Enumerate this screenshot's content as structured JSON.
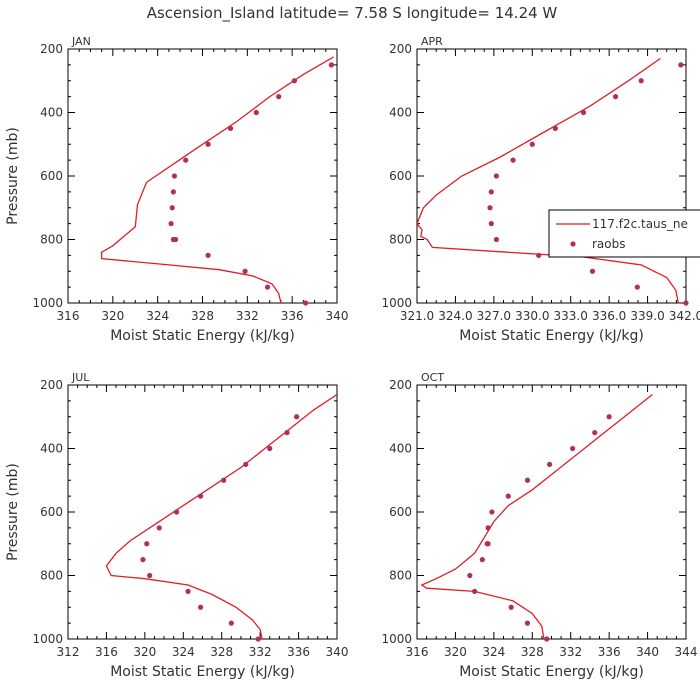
{
  "title": "Ascension_Island   latitude= 7.58 S longitude= 14.24 W",
  "colors": {
    "series": "#dd1f26",
    "points": "#b0305b",
    "axes": "#000000",
    "text": "#333333"
  },
  "legend": {
    "entries": [
      {
        "label": "117.f2c.taus_ne",
        "kind": "line"
      },
      {
        "label": "raobs",
        "kind": "marker"
      }
    ]
  },
  "chart_data": [
    {
      "type": "line",
      "panel": "JAN",
      "xlabel": "Moist Static Energy (kJ/kg)",
      "ylabel": "Pressure (mb)",
      "xlim": [
        316,
        340
      ],
      "ylim": [
        1000,
        200
      ],
      "xticks": [
        "316",
        "320",
        "324",
        "328",
        "332",
        "336",
        "340"
      ],
      "yticks": [
        "200",
        "400",
        "600",
        "800",
        "1000"
      ],
      "series": [
        {
          "style": "line",
          "x": [
            339.7,
            337.0,
            334.0,
            331.0,
            328.0,
            325.5,
            323.0,
            322.2,
            322.0,
            321.0,
            320.0,
            319.0,
            319.0,
            325.0,
            329.5,
            332.5,
            334.2,
            334.8,
            335.0
          ],
          "y": [
            225,
            280,
            350,
            430,
            500,
            560,
            620,
            690,
            760,
            790,
            820,
            840,
            860,
            880,
            895,
            915,
            940,
            970,
            1000
          ]
        },
        {
          "name": "raobs",
          "style": "markers",
          "x": [
            339.5,
            336.2,
            334.8,
            332.8,
            330.5,
            328.5,
            326.5,
            325.5,
            325.4,
            325.3,
            325.2,
            325.4,
            325.6,
            328.5,
            331.8,
            333.8,
            337.2
          ],
          "y": [
            250,
            300,
            350,
            400,
            450,
            500,
            550,
            600,
            650,
            700,
            750,
            800,
            800,
            850,
            900,
            950,
            1000
          ]
        }
      ]
    },
    {
      "type": "line",
      "panel": "APR",
      "xlabel": "Moist Static Energy (kJ/kg)",
      "xlim": [
        321.0,
        342.0
      ],
      "ylim": [
        1000,
        200
      ],
      "xticks": [
        "321.0",
        "324.0",
        "327.0",
        "330.0",
        "333.0",
        "336.0",
        "339.0",
        "342.0"
      ],
      "yticks": [
        "200",
        "400",
        "600",
        "800",
        "1000"
      ],
      "series": [
        {
          "style": "line",
          "x": [
            340.0,
            337.5,
            334.5,
            331.0,
            327.5,
            324.5,
            322.5,
            321.5,
            321.0,
            321.4,
            321.3,
            321.8,
            322.2,
            328.0,
            334.0,
            338.5,
            340.5,
            341.2,
            341.4
          ],
          "y": [
            230,
            300,
            380,
            460,
            540,
            600,
            660,
            700,
            750,
            770,
            790,
            800,
            825,
            840,
            855,
            880,
            920,
            960,
            1000
          ]
        },
        {
          "name": "raobs",
          "style": "markers",
          "x": [
            341.6,
            338.5,
            336.5,
            334.0,
            331.8,
            330.0,
            328.5,
            327.2,
            326.8,
            326.7,
            326.8,
            327.2,
            330.5,
            334.7,
            338.2,
            342.0
          ],
          "y": [
            250,
            300,
            350,
            400,
            450,
            500,
            550,
            600,
            650,
            700,
            750,
            800,
            850,
            900,
            950,
            1000
          ]
        }
      ]
    },
    {
      "type": "line",
      "panel": "JUL",
      "xlabel": "Moist Static Energy (kJ/kg)",
      "ylabel": "Pressure (mb)",
      "xlim": [
        312,
        340
      ],
      "ylim": [
        1000,
        200
      ],
      "xticks": [
        "312",
        "316",
        "320",
        "324",
        "328",
        "332",
        "336",
        "340"
      ],
      "yticks": [
        "200",
        "400",
        "600",
        "800",
        "1000"
      ],
      "series": [
        {
          "style": "line",
          "x": [
            340.0,
            337.5,
            335.0,
            332.5,
            330.0,
            327.0,
            324.0,
            321.0,
            318.5,
            317.0,
            316.0,
            316.5,
            320.0,
            324.5,
            327.0,
            329.5,
            331.2,
            332.0,
            332.2
          ],
          "y": [
            230,
            280,
            340,
            400,
            460,
            520,
            580,
            640,
            690,
            730,
            770,
            800,
            810,
            830,
            860,
            900,
            940,
            970,
            1000
          ]
        },
        {
          "name": "raobs",
          "style": "markers",
          "x": [
            335.8,
            334.8,
            333.0,
            330.5,
            328.2,
            325.8,
            323.3,
            321.5,
            320.2,
            319.8,
            320.5,
            324.5,
            325.8,
            329.0,
            331.8
          ],
          "y": [
            300,
            350,
            400,
            450,
            500,
            550,
            600,
            650,
            700,
            750,
            800,
            850,
            900,
            950,
            1000
          ]
        }
      ]
    },
    {
      "type": "line",
      "panel": "OCT",
      "xlabel": "Moist Static Energy (kJ/kg)",
      "xlim": [
        316,
        344
      ],
      "ylim": [
        1000,
        200
      ],
      "xticks": [
        "316",
        "320",
        "324",
        "328",
        "332",
        "336",
        "340",
        "344"
      ],
      "yticks": [
        "200",
        "400",
        "600",
        "800",
        "1000"
      ],
      "series": [
        {
          "style": "line",
          "x": [
            340.5,
            338.0,
            335.5,
            333.0,
            330.5,
            328.0,
            325.5,
            324.0,
            323.0,
            322.0,
            320.0,
            318.0,
            316.5,
            317.0,
            322.0,
            326.0,
            328.0,
            329.0,
            329.2
          ],
          "y": [
            230,
            290,
            350,
            410,
            470,
            530,
            580,
            630,
            680,
            730,
            780,
            810,
            830,
            840,
            850,
            880,
            920,
            960,
            1000
          ]
        },
        {
          "name": "raobs",
          "style": "markers",
          "x": [
            336.0,
            334.5,
            332.2,
            329.8,
            327.5,
            325.5,
            323.8,
            323.4,
            323.3,
            323.4,
            322.8,
            321.5,
            322.0,
            325.8,
            327.5,
            329.5
          ],
          "y": [
            300,
            350,
            400,
            450,
            500,
            550,
            600,
            650,
            700,
            700,
            750,
            800,
            850,
            900,
            950,
            1000
          ]
        }
      ]
    }
  ]
}
